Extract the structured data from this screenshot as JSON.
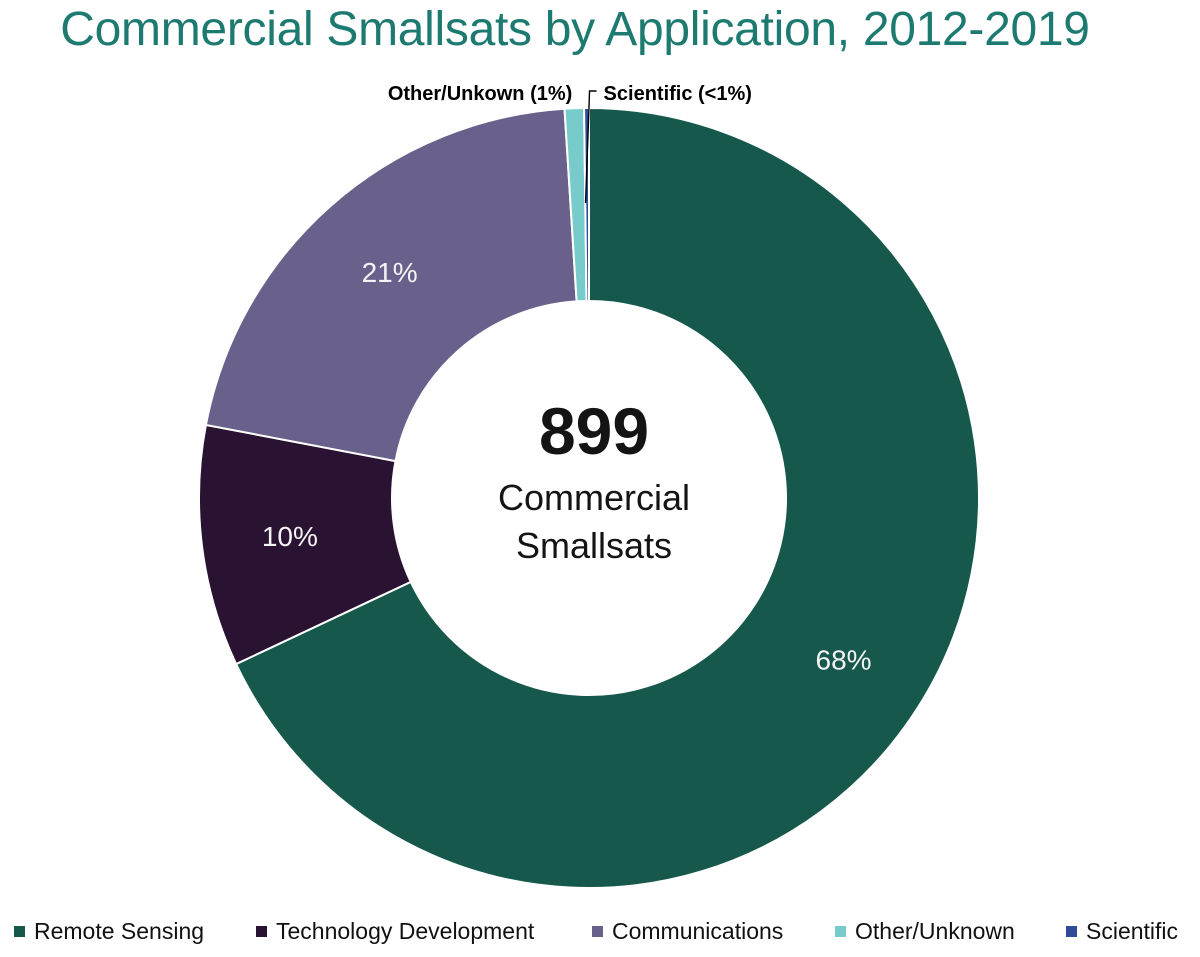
{
  "chart_data": {
    "type": "pie",
    "variant": "donut",
    "title": "Commercial Smallsats by Application, 2012-2019",
    "center_value": "899",
    "center_caption_lines": [
      "Commercial",
      "Smallsats"
    ],
    "slices": [
      {
        "name": "Remote Sensing",
        "value": 68,
        "label": "68%",
        "color": "#17584c"
      },
      {
        "name": "Technology Development",
        "value": 10,
        "label": "10%",
        "color": "#2a1332"
      },
      {
        "name": "Communications",
        "value": 21,
        "label": "21%",
        "color": "#69618c"
      },
      {
        "name": "Other/Unknown",
        "value": 0.8,
        "label": "Other/Unkown (1%)",
        "color": "#78cbcb"
      },
      {
        "name": "Scientific",
        "value": 0.2,
        "label": "Scientific (<1%)",
        "color": "#2f4b9a"
      }
    ],
    "legend": [
      "Remote Sensing",
      "Technology Development",
      "Communications",
      "Other/Unknown",
      "Scientific"
    ],
    "legend_placement": "bottom"
  }
}
